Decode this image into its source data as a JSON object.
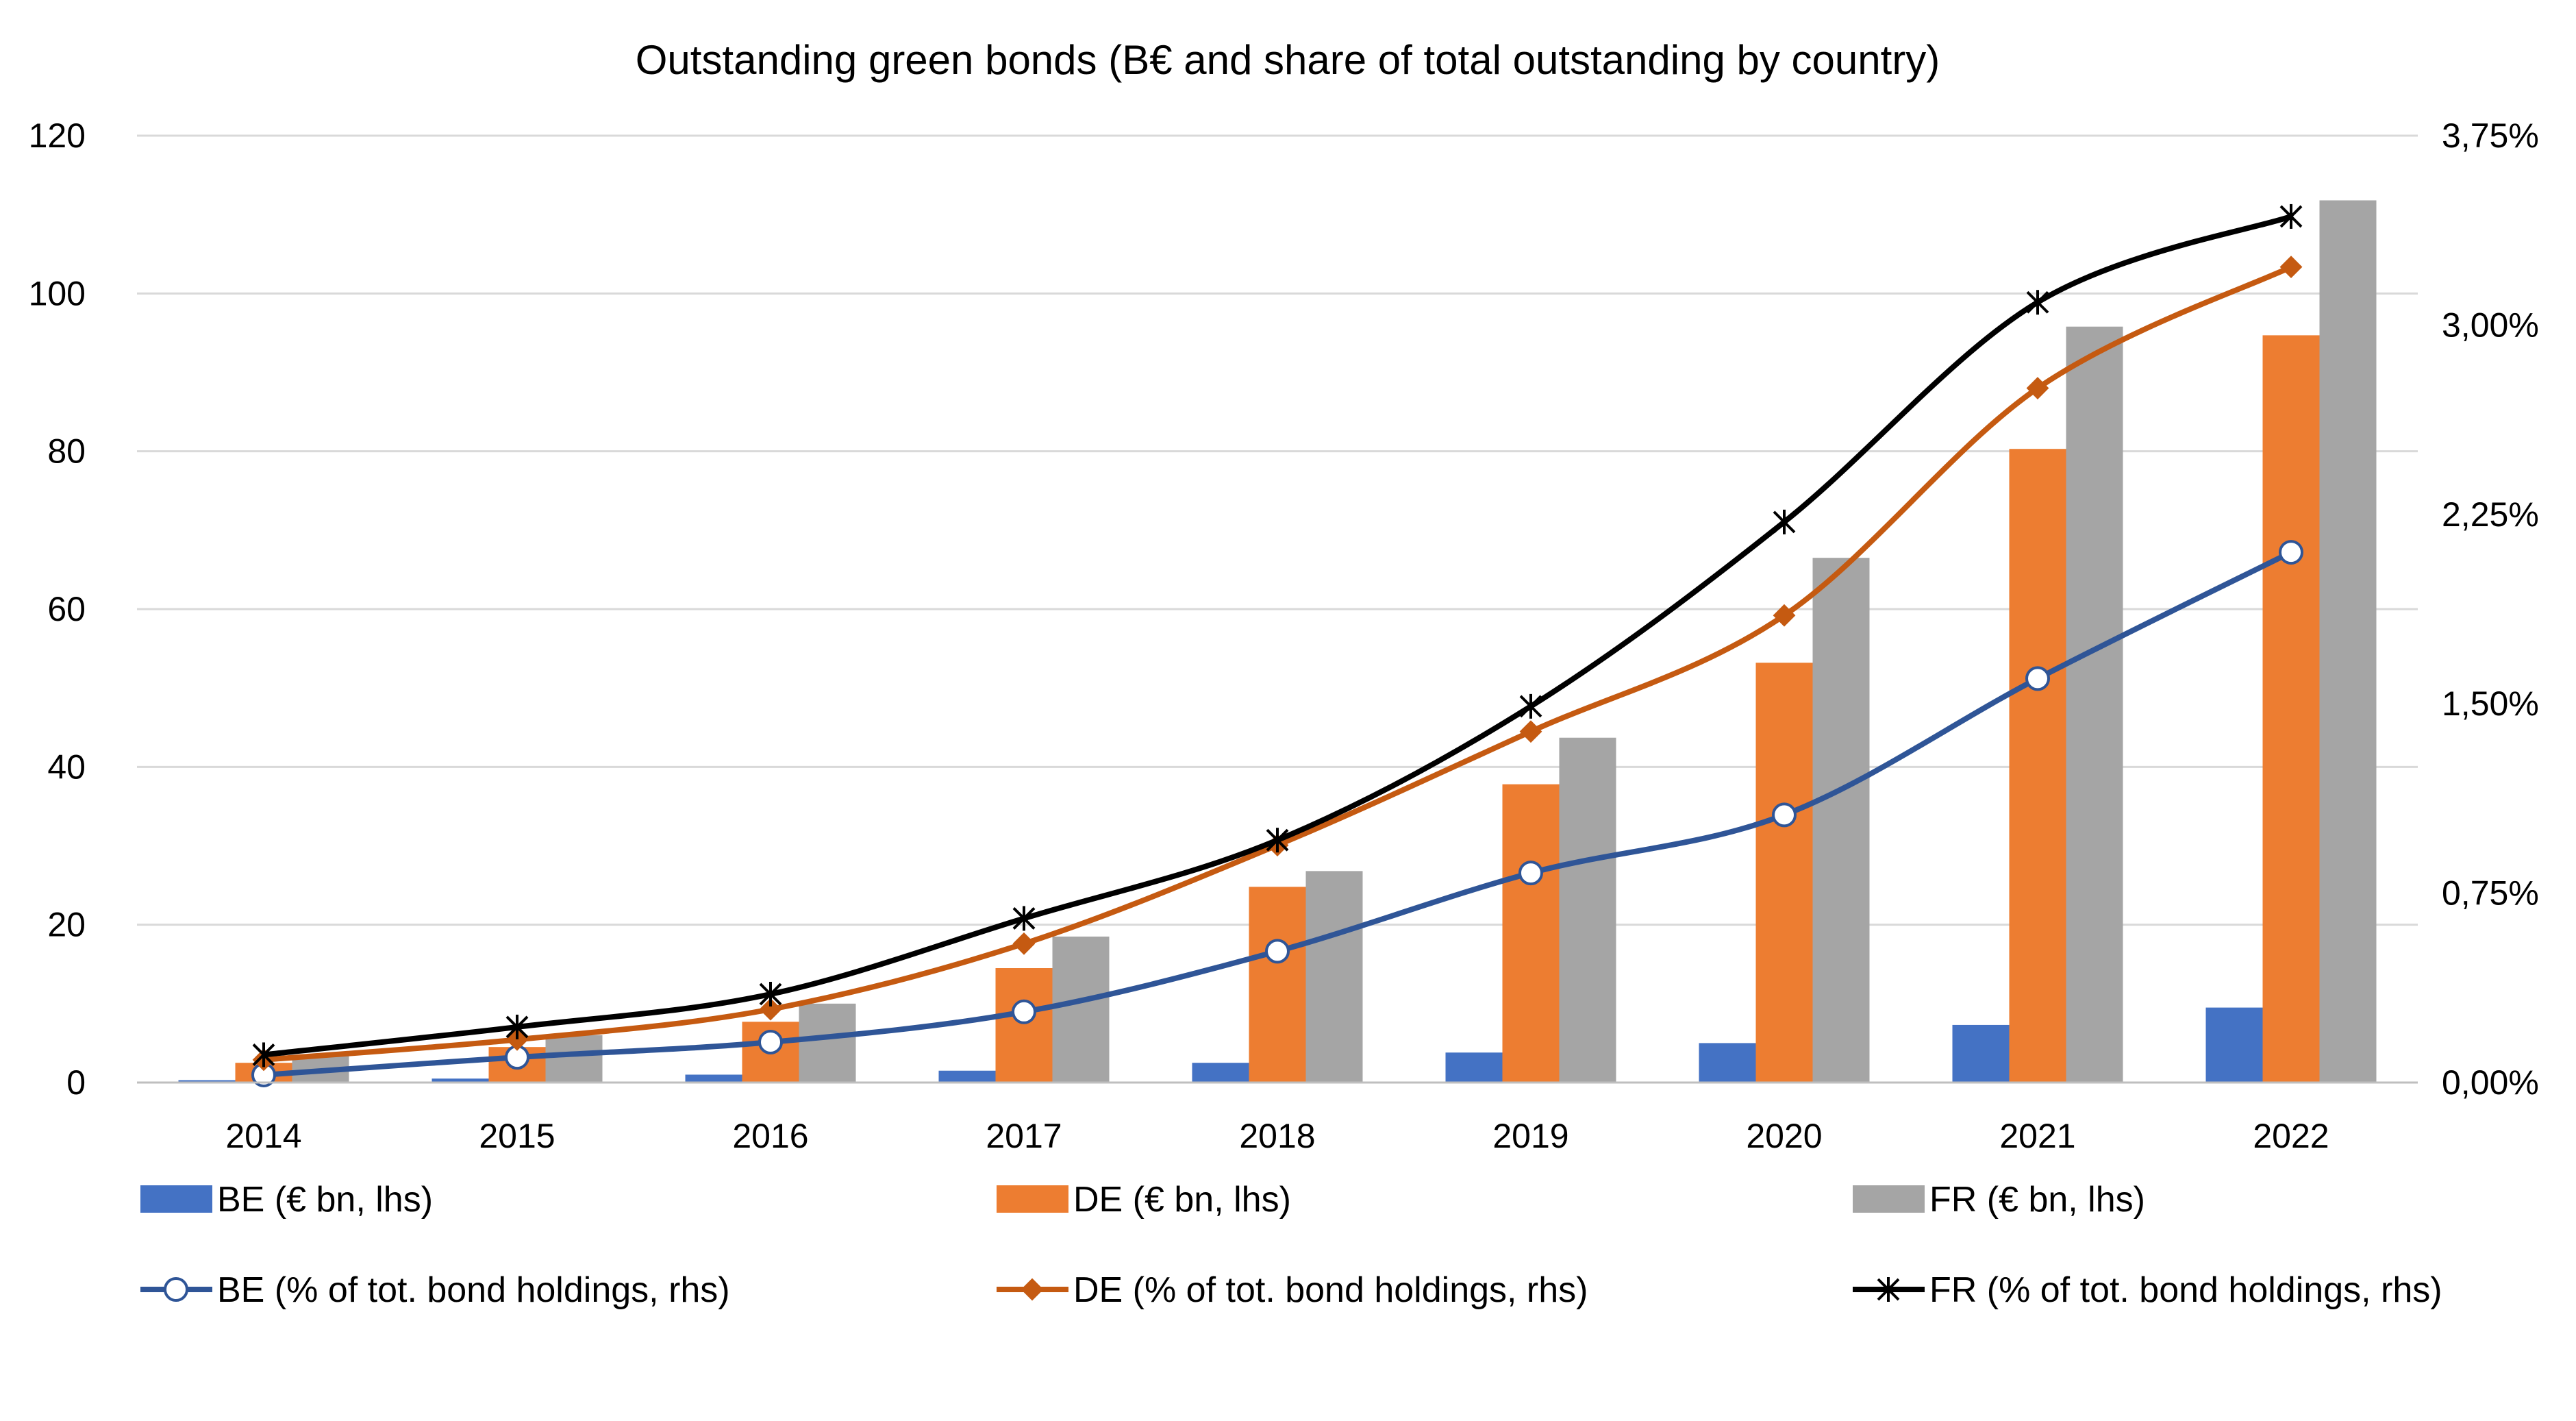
{
  "chart_data": {
    "type": "bar",
    "title": "Outstanding green bonds (B€ and share of total outstanding by country)",
    "categories": [
      "2014",
      "2015",
      "2016",
      "2017",
      "2018",
      "2019",
      "2020",
      "2021",
      "2022"
    ],
    "y_left": {
      "ylim": [
        0,
        120
      ],
      "ticks": [
        "0",
        "20",
        "40",
        "60",
        "80",
        "100",
        "120"
      ],
      "tick_values": [
        0,
        20,
        40,
        60,
        80,
        100,
        120
      ]
    },
    "y_right": {
      "ylim": [
        0,
        3.75
      ],
      "ticks": [
        "0,00%",
        "0,75%",
        "1,50%",
        "2,25%",
        "3,00%",
        "3,75%"
      ],
      "tick_values": [
        0,
        0.75,
        1.5,
        2.25,
        3.0,
        3.75
      ]
    },
    "grid": true,
    "legend_position": "bottom",
    "bar_series": [
      {
        "name": "BE (€ bn, lhs)",
        "color": "#4472C4",
        "values": [
          0.3,
          0.5,
          1.0,
          1.5,
          2.5,
          3.8,
          5.0,
          7.3,
          9.5
        ]
      },
      {
        "name": "DE (€ bn, lhs)",
        "color": "#ED7D31",
        "values": [
          2.5,
          4.5,
          7.7,
          14.5,
          24.8,
          37.8,
          53.2,
          80.3,
          94.7
        ]
      },
      {
        "name": "FR (€ bn, lhs)",
        "color": "#A5A5A5",
        "values": [
          3.5,
          6.0,
          10.0,
          18.5,
          26.8,
          43.7,
          66.5,
          95.8,
          111.8
        ]
      }
    ],
    "line_series": [
      {
        "name": "BE (% of tot. bond holdings, rhs)",
        "color": "#2F5597",
        "marker": "circle",
        "values": [
          0.03,
          0.1,
          0.16,
          0.28,
          0.52,
          0.83,
          1.06,
          1.6,
          2.1
        ]
      },
      {
        "name": "DE (% of tot. bond holdings, rhs)",
        "color": "#C55A11",
        "marker": "diamond",
        "values": [
          0.09,
          0.17,
          0.29,
          0.55,
          0.94,
          1.39,
          1.85,
          2.75,
          3.23
        ]
      },
      {
        "name": "FR (% of tot. bond holdings, rhs)",
        "color": "#000000",
        "marker": "star",
        "values": [
          0.11,
          0.22,
          0.35,
          0.65,
          0.96,
          1.49,
          2.22,
          3.09,
          3.43
        ]
      }
    ]
  }
}
